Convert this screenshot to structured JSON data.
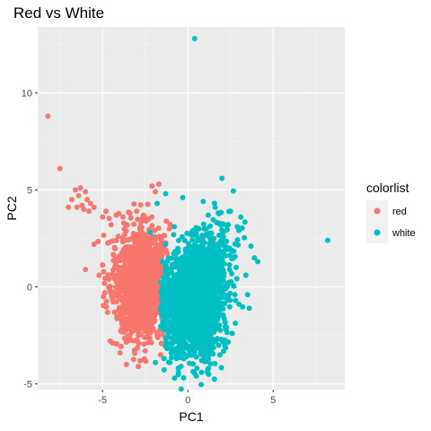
{
  "chart_data": {
    "type": "scatter",
    "title": "Red vs White",
    "xlabel": "PC1",
    "ylabel": "PC2",
    "xlim": [
      -8.8,
      9.2
    ],
    "ylim": [
      -5.3,
      13.4
    ],
    "xticks": [
      -5,
      0,
      5
    ],
    "yticks": [
      -5,
      0,
      5,
      10
    ],
    "grid": true,
    "legend": {
      "title": "colorlist",
      "position": "right"
    },
    "series": [
      {
        "name": "red",
        "color": "#F8766D",
        "points": [
          [
            -8.2,
            8.8
          ],
          [
            -7.5,
            6.1
          ],
          [
            -6.6,
            5.0
          ],
          [
            -6.3,
            5.1
          ],
          [
            -6.0,
            4.9
          ],
          [
            -6.4,
            4.7
          ],
          [
            -6.8,
            4.5
          ],
          [
            -5.9,
            4.5
          ],
          [
            -6.2,
            4.2
          ],
          [
            -5.7,
            4.3
          ],
          [
            -5.5,
            4.1
          ],
          [
            -6.1,
            4.0
          ],
          [
            -5.8,
            3.9
          ],
          [
            -6.5,
            4.1
          ],
          [
            -7.0,
            4.1
          ],
          [
            -6.0,
            0.9
          ],
          [
            -5.2,
            0.6
          ],
          [
            -5.5,
            2.2
          ],
          [
            -5.0,
            3.6
          ],
          [
            -4.8,
            3.9
          ],
          [
            -4.5,
            3.2
          ],
          [
            -4.2,
            3.7
          ],
          [
            -3.8,
            3.6
          ],
          [
            -3.4,
            3.8
          ],
          [
            -3.0,
            3.9
          ],
          [
            -2.6,
            3.7
          ],
          [
            -2.3,
            3.5
          ],
          [
            -2.1,
            5.2
          ],
          [
            -1.7,
            5.3
          ],
          [
            -1.9,
            4.9
          ],
          [
            -4.4,
            -2.9
          ],
          [
            -4.3,
            -1.3
          ],
          [
            -4.6,
            2.3
          ],
          [
            -3.6,
            -4.0
          ],
          [
            -2.9,
            -4.1
          ],
          [
            -2.5,
            -3.3
          ],
          [
            -1.8,
            -2.5
          ],
          [
            -1.6,
            -3.5
          ]
        ],
        "cluster": {
          "cx": -2.8,
          "cy": 0.1,
          "sx": 0.75,
          "sy": 1.35,
          "count": 1400,
          "seed": 7
        }
      },
      {
        "name": "white",
        "color": "#00BFC4",
        "points": [
          [
            0.4,
            12.8
          ],
          [
            8.2,
            2.4
          ],
          [
            2.0,
            5.6
          ],
          [
            -0.3,
            4.6
          ],
          [
            -1.3,
            4.8
          ],
          [
            -1.8,
            4.3
          ],
          [
            0.9,
            4.4
          ],
          [
            1.6,
            4.1
          ],
          [
            2.5,
            3.9
          ],
          [
            3.1,
            3.6
          ],
          [
            3.7,
            2.1
          ],
          [
            3.9,
            1.5
          ],
          [
            4.1,
            1.3
          ],
          [
            3.4,
            0.6
          ],
          [
            3.0,
            -0.9
          ],
          [
            2.6,
            -2.4
          ],
          [
            2.2,
            -3.1
          ],
          [
            1.2,
            -4.2
          ],
          [
            0.8,
            -4.4
          ],
          [
            0.5,
            -4.6
          ],
          [
            -0.4,
            -4.1
          ],
          [
            -1.4,
            -3.7
          ],
          [
            -1.9,
            -3.9
          ],
          [
            -1.1,
            -3.0
          ],
          [
            -1.3,
            2.2
          ],
          [
            -0.8,
            3.1
          ],
          [
            -2.2,
            2.8
          ],
          [
            -1.5,
            1.3
          ],
          [
            -1.0,
            0.9
          ],
          [
            3.5,
            -0.4
          ],
          [
            3.6,
            -1.1
          ],
          [
            2.9,
            3.1
          ]
        ],
        "cluster": {
          "cx": 0.3,
          "cy": -0.5,
          "sx": 0.85,
          "sy": 1.45,
          "count": 2200,
          "seed": 13
        }
      }
    ]
  }
}
